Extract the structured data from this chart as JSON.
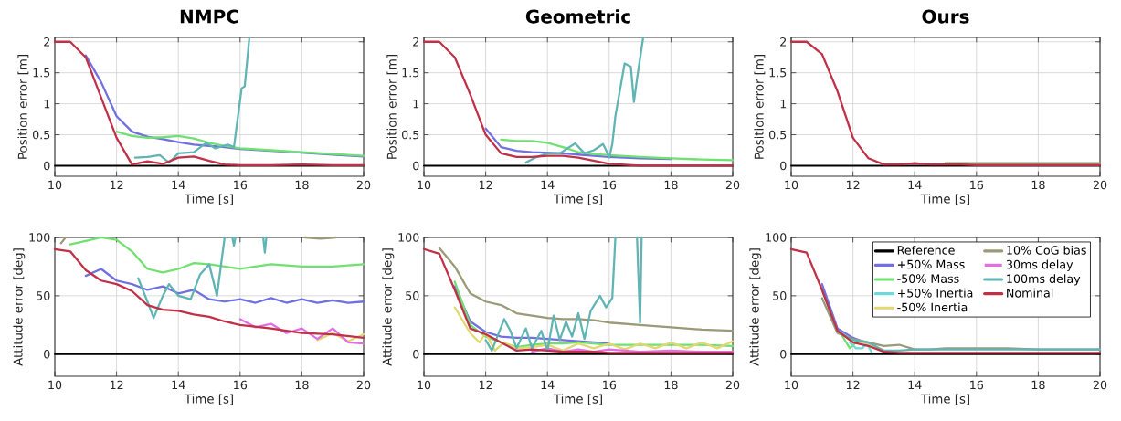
{
  "chart_data": [
    {
      "type": "line",
      "title": "NMPC",
      "xlabel": "Time [s]",
      "ylabel": "Position error [m]",
      "xlim": [
        10,
        20
      ],
      "ylim": [
        -0.17,
        2.07
      ],
      "xticks": [
        10,
        12,
        14,
        16,
        18,
        20
      ],
      "yticks": [
        0,
        0.5,
        1,
        1.5,
        2
      ],
      "grid": true,
      "x": [
        10,
        10.5,
        11,
        11.5,
        12,
        12.5,
        13,
        13.5,
        14,
        14.5,
        15,
        15.5,
        16,
        17,
        18,
        19,
        20
      ],
      "series": [
        {
          "color": "#000000",
          "x": [
            10,
            20
          ],
          "values": [
            0,
            0
          ]
        },
        {
          "color": "#7070e0",
          "values": [
            null,
            null,
            1.78,
            1.35,
            0.8,
            0.55,
            0.47,
            0.43,
            0.38,
            0.34,
            0.32,
            0.3,
            0.27,
            0.24,
            0.21,
            0.18,
            0.15
          ]
        },
        {
          "color": "#70e070",
          "values": [
            null,
            null,
            null,
            null,
            0.55,
            0.48,
            0.45,
            0.46,
            0.48,
            0.44,
            0.37,
            0.32,
            0.28,
            0.25,
            0.22,
            0.19,
            0.16
          ]
        },
        {
          "color": "#60b4b4",
          "x": [
            12.6,
            13,
            13.4,
            13.7,
            14,
            14.5,
            14.9,
            15.2,
            15.6,
            15.8,
            16.05,
            16.15,
            16.3
          ],
          "values": [
            0.13,
            0.14,
            0.17,
            0.05,
            0.2,
            0.22,
            0.37,
            0.28,
            0.34,
            0.3,
            1.25,
            1.28,
            2.07
          ]
        },
        {
          "color": "#c03048",
          "values": [
            2,
            2,
            1.75,
            1.1,
            0.45,
            0.02,
            0.07,
            0.03,
            0.13,
            0.15,
            0.08,
            0.02,
            0.01,
            0.01,
            0.02,
            0.01,
            0.01
          ]
        }
      ]
    },
    {
      "type": "line",
      "title": "Geometric",
      "xlabel": "Time [s]",
      "ylabel": "Position error [m]",
      "xlim": [
        10,
        20
      ],
      "ylim": [
        -0.17,
        2.07
      ],
      "xticks": [
        10,
        12,
        14,
        16,
        18,
        20
      ],
      "yticks": [
        0,
        0.5,
        1,
        1.5,
        2
      ],
      "grid": true,
      "x": [
        10,
        10.5,
        11,
        11.5,
        12,
        12.5,
        13,
        13.5,
        14,
        14.5,
        15,
        15.5,
        16,
        17,
        18,
        19,
        20
      ],
      "series": [
        {
          "color": "#000000",
          "x": [
            10,
            20
          ],
          "values": [
            0,
            0
          ]
        },
        {
          "color": "#7070e0",
          "values": [
            null,
            null,
            null,
            null,
            0.6,
            0.3,
            0.24,
            0.22,
            0.21,
            0.2,
            0.18,
            0.16,
            0.14,
            0.12,
            0.11,
            null,
            null
          ]
        },
        {
          "color": "#70e070",
          "values": [
            null,
            null,
            null,
            null,
            null,
            0.42,
            0.4,
            0.4,
            0.37,
            0.3,
            0.22,
            0.19,
            0.17,
            0.14,
            0.12,
            0.1,
            0.09
          ]
        },
        {
          "color": "#60b4b4",
          "x": [
            13.3,
            13.6,
            14,
            14.4,
            14.9,
            15.2,
            15.5,
            15.8,
            15.9,
            16.0,
            16.1,
            16.2,
            16.5,
            16.7,
            16.8,
            16.9,
            17.1
          ],
          "values": [
            0.05,
            0.13,
            0.2,
            0.2,
            0.36,
            0.2,
            0.25,
            0.35,
            0.25,
            0.13,
            0.35,
            0.8,
            1.65,
            1.6,
            1.03,
            1.4,
            2.07
          ]
        },
        {
          "color": "#c03048",
          "values": [
            2,
            2,
            1.75,
            1.15,
            0.5,
            0.2,
            0.14,
            0.14,
            0.16,
            0.16,
            0.13,
            0.08,
            0.03,
            0.0,
            0.0,
            0.0,
            0.0
          ]
        }
      ]
    },
    {
      "type": "line",
      "title": "Ours",
      "xlabel": "Time [s]",
      "ylabel": "Position error [m]",
      "xlim": [
        10,
        20
      ],
      "ylim": [
        -0.17,
        2.07
      ],
      "xticks": [
        10,
        12,
        14,
        16,
        18,
        20
      ],
      "yticks": [
        0,
        0.5,
        1,
        1.5,
        2
      ],
      "grid": true,
      "x": [
        10,
        10.5,
        11,
        11.5,
        12,
        12.5,
        13,
        13.5,
        14,
        14.5,
        15,
        15.5,
        16,
        17,
        18,
        19,
        20
      ],
      "series": [
        {
          "color": "#000000",
          "x": [
            10,
            20
          ],
          "values": [
            0,
            0
          ]
        },
        {
          "color": "#9a9a78",
          "x": [
            15,
            16,
            17,
            18,
            19,
            20
          ],
          "values": [
            0.04,
            0.04,
            0.04,
            0.04,
            0.04,
            0.04
          ]
        },
        {
          "color": "#c03048",
          "values": [
            2,
            2,
            1.8,
            1.2,
            0.45,
            0.12,
            0.02,
            0.02,
            0.04,
            0.02,
            0.02,
            0.02,
            0.01,
            0.01,
            0.01,
            0.01,
            0.01
          ]
        }
      ]
    },
    {
      "type": "line",
      "xlabel": "Time [s]",
      "ylabel": "Attitude error [deg]",
      "xlim": [
        10,
        20
      ],
      "ylim": [
        -19,
        100
      ],
      "xticks": [
        10,
        12,
        14,
        16,
        18,
        20
      ],
      "yticks": [
        0,
        50,
        100
      ],
      "grid": true,
      "x": [
        10,
        10.5,
        11,
        11.5,
        12,
        12.5,
        13,
        13.5,
        14,
        14.5,
        15,
        15.5,
        16,
        17,
        18,
        19,
        20
      ],
      "series": [
        {
          "color": "#000000",
          "x": [
            10,
            20
          ],
          "values": [
            0,
            0
          ]
        },
        {
          "color": "#7070e0",
          "x": [
            11,
            11.5,
            12,
            12.5,
            13,
            13.5,
            14,
            14.5,
            15,
            15.5,
            16,
            16.5,
            17,
            17.5,
            18,
            18.5,
            19,
            19.5,
            20
          ],
          "values": [
            67,
            73,
            63,
            60,
            55,
            58,
            52,
            55,
            47,
            45,
            47,
            44,
            48,
            44,
            47,
            44,
            46,
            44,
            45
          ]
        },
        {
          "color": "#70e070",
          "values": [
            null,
            94,
            97,
            100,
            98,
            88,
            73,
            70,
            73,
            78,
            77,
            75,
            73,
            77,
            75,
            75,
            77
          ]
        },
        {
          "color": "#e0d870",
          "x": [
            18.5,
            19,
            19.5,
            20
          ],
          "values": [
            12,
            18,
            11,
            17
          ]
        },
        {
          "color": "#9a9a78",
          "x": [
            10.2,
            10.35,
            14,
            18.1,
            18.6,
            19.1
          ],
          "values": [
            95,
            100,
            null,
            100,
            99,
            100
          ]
        },
        {
          "color": "#e070e0",
          "x": [
            16,
            16.5,
            17,
            17.5,
            18,
            18.5,
            19,
            19.5,
            20
          ],
          "values": [
            30,
            23,
            26,
            18,
            22,
            13,
            22,
            10,
            9
          ]
        },
        {
          "color": "#60b4b4",
          "x": [
            12.7,
            13,
            13.2,
            13.5,
            13.7,
            14,
            14.4,
            14.7,
            15,
            15.25,
            15.4,
            15.5,
            15.65,
            15.75,
            15.8,
            15.85,
            16.3,
            16.75,
            16.8,
            16.85
          ],
          "values": [
            65,
            45,
            31,
            50,
            60,
            50,
            47,
            68,
            77,
            50,
            80,
            100,
            null,
            100,
            93,
            100,
            null,
            100,
            87,
            100
          ]
        },
        {
          "color": "#c03048",
          "values": [
            90,
            88,
            72,
            63,
            60,
            54,
            42,
            38,
            37,
            34,
            32,
            28,
            25,
            22,
            18,
            17,
            14
          ]
        }
      ]
    },
    {
      "type": "line",
      "xlabel": "Time [s]",
      "ylabel": "Attitude error [deg]",
      "xlim": [
        10,
        20
      ],
      "ylim": [
        -19,
        100
      ],
      "xticks": [
        10,
        12,
        14,
        16,
        18,
        20
      ],
      "yticks": [
        0,
        50,
        100
      ],
      "grid": true,
      "x": [
        10,
        10.5,
        11,
        11.5,
        12,
        12.5,
        13,
        13.5,
        14,
        14.5,
        15,
        15.5,
        16,
        17,
        18,
        19,
        20
      ],
      "series": [
        {
          "color": "#000000",
          "x": [
            10,
            20
          ],
          "values": [
            0,
            0
          ]
        },
        {
          "color": "#7070e0",
          "values": [
            null,
            null,
            58,
            28,
            19,
            15,
            14,
            14,
            13,
            12,
            11,
            10,
            9,
            null,
            null,
            null,
            null
          ]
        },
        {
          "color": "#70e070",
          "values": [
            null,
            null,
            62,
            25,
            15,
            10,
            6,
            8,
            9,
            9,
            10,
            9,
            8,
            8,
            8,
            8,
            7
          ]
        },
        {
          "color": "#e0d870",
          "x": [
            11,
            11.5,
            11.8,
            12,
            12.3,
            12.6,
            13,
            13.5,
            14,
            14.5,
            15,
            15.5,
            16,
            16.5,
            17,
            17.5,
            18,
            18.5,
            19,
            19.5,
            20
          ],
          "values": [
            40,
            18,
            10,
            18,
            3,
            10,
            5,
            6,
            8,
            3,
            9,
            5,
            9,
            4,
            9,
            5,
            10,
            5,
            10,
            5,
            11
          ]
        },
        {
          "color": "#9a9a78",
          "values": [
            null,
            91,
            75,
            52,
            45,
            42,
            35,
            33,
            31,
            30,
            30,
            29,
            27,
            25,
            23,
            21,
            20
          ]
        },
        {
          "color": "#e070e0",
          "values": [
            null,
            null,
            null,
            null,
            null,
            null,
            null,
            2,
            5,
            2,
            4,
            2,
            4,
            2,
            3,
            2,
            2
          ]
        },
        {
          "color": "#60b4b4",
          "x": [
            12,
            12.2,
            12.6,
            12.8,
            13,
            13.3,
            13.5,
            13.8,
            14,
            14.2,
            14.4,
            14.6,
            14.8,
            15,
            15.2,
            15.4,
            15.7,
            15.9,
            16.1,
            16.2,
            16.5,
            16.9,
            17.0,
            17.05
          ],
          "values": [
            12,
            3,
            30,
            20,
            5,
            22,
            5,
            20,
            3,
            33,
            12,
            28,
            15,
            35,
            13,
            37,
            50,
            40,
            48,
            100,
            null,
            100,
            27,
            100
          ]
        },
        {
          "color": "#c03048",
          "values": [
            90,
            86,
            55,
            22,
            17,
            10,
            3,
            4,
            3,
            2,
            2,
            2,
            1,
            1,
            1,
            1,
            1
          ]
        }
      ]
    },
    {
      "type": "line",
      "xlabel": "Time [s]",
      "ylabel": "Attitude error [deg]",
      "xlim": [
        10,
        20
      ],
      "ylim": [
        -19,
        100
      ],
      "xticks": [
        10,
        12,
        14,
        16,
        18,
        20
      ],
      "yticks": [
        0,
        50,
        100
      ],
      "grid": true,
      "legend": "top right",
      "x": [
        10,
        10.5,
        11,
        11.5,
        12,
        12.5,
        13,
        13.5,
        14,
        14.5,
        15,
        15.5,
        16,
        17,
        18,
        19,
        20
      ],
      "series": [
        {
          "name": "Reference",
          "color": "#000000",
          "x": [
            10,
            20
          ],
          "values": [
            0,
            0
          ]
        },
        {
          "name": "+50% Mass",
          "color": "#7070e0",
          "values": [
            null,
            null,
            60,
            22,
            14,
            9,
            null,
            null,
            null,
            null,
            null,
            null,
            null,
            null,
            null,
            null,
            null
          ]
        },
        {
          "name": "-50% Mass",
          "color": "#70e070",
          "x": [
            11.6,
            11.9,
            12.1
          ],
          "values": [
            18,
            5,
            10
          ]
        },
        {
          "name": "+50% Inertia",
          "color": "#70d8d8",
          "x": [
            11.9,
            12.1,
            12.3,
            12.45,
            12.6
          ],
          "values": [
            10,
            5,
            5,
            9,
            2
          ]
        },
        {
          "name": "-50% Inertia",
          "color": "#e0d870",
          "x": [
            12,
            12.5,
            13
          ],
          "values": [
            12,
            9,
            3
          ]
        },
        {
          "name": "10% CoG bias",
          "color": "#9a9a78",
          "values": [
            null,
            null,
            48,
            18,
            13,
            10,
            7,
            8,
            4,
            4,
            5,
            5,
            5,
            5,
            4,
            4,
            4
          ]
        },
        {
          "name": "30ms delay",
          "color": "#e070e0",
          "values": [
            null,
            null,
            null,
            null,
            null,
            null,
            null,
            null,
            null,
            null,
            null,
            null,
            null,
            null,
            null,
            null,
            null
          ]
        },
        {
          "name": "100ms delay",
          "color": "#60b4b4",
          "values": [
            null,
            null,
            55,
            20,
            12,
            10,
            3,
            3,
            4,
            4,
            4,
            4,
            4,
            4,
            4,
            4,
            4
          ]
        },
        {
          "name": "Nominal",
          "color": "#c03048",
          "values": [
            90,
            87,
            55,
            20,
            10,
            7,
            2,
            1,
            1,
            1,
            1,
            1,
            1,
            1,
            1,
            1,
            1
          ]
        }
      ]
    }
  ]
}
